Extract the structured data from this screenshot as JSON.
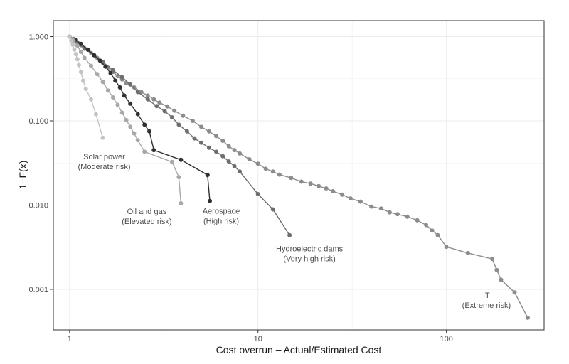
{
  "chart_data": {
    "type": "line",
    "xlabel": "Cost overrun – Actual/Estimated Cost",
    "ylabel": "1−F(x)",
    "x_scale": "log",
    "y_scale": "log",
    "xlim": [
      0.82,
      330
    ],
    "ylim": [
      0.00033,
      1.55
    ],
    "grid": true,
    "x_ticks": [
      {
        "value": 1,
        "label": "1"
      },
      {
        "value": 10,
        "label": "10"
      },
      {
        "value": 100,
        "label": "100"
      }
    ],
    "y_ticks": [
      {
        "value": 1,
        "label": "1.000"
      },
      {
        "value": 0.1,
        "label": "0.100"
      },
      {
        "value": 0.01,
        "label": "0.010"
      },
      {
        "value": 0.001,
        "label": "0.001"
      }
    ],
    "series": [
      {
        "id": "it",
        "color": "#8c8c8c",
        "points": [
          [
            1,
            1
          ],
          [
            1.05,
            0.94
          ],
          [
            1.1,
            0.86
          ],
          [
            1.15,
            0.79
          ],
          [
            1.2,
            0.73
          ],
          [
            1.3,
            0.64
          ],
          [
            1.4,
            0.56
          ],
          [
            1.5,
            0.49
          ],
          [
            1.6,
            0.43
          ],
          [
            1.7,
            0.38
          ],
          [
            1.8,
            0.34
          ],
          [
            1.9,
            0.31
          ],
          [
            2.0,
            0.28
          ],
          [
            2.2,
            0.25
          ],
          [
            2.4,
            0.22
          ],
          [
            2.6,
            0.2
          ],
          [
            2.8,
            0.18
          ],
          [
            3.0,
            0.165
          ],
          [
            3.3,
            0.148
          ],
          [
            3.6,
            0.132
          ],
          [
            4.0,
            0.115
          ],
          [
            4.5,
            0.1
          ],
          [
            5.0,
            0.085
          ],
          [
            5.5,
            0.075
          ],
          [
            6.0,
            0.066
          ],
          [
            6.5,
            0.058
          ],
          [
            7,
            0.05
          ],
          [
            7.5,
            0.045
          ],
          [
            8,
            0.041
          ],
          [
            9,
            0.035
          ],
          [
            10,
            0.031
          ],
          [
            11,
            0.027
          ],
          [
            12,
            0.025
          ],
          [
            13,
            0.023
          ],
          [
            15,
            0.021
          ],
          [
            17,
            0.019
          ],
          [
            19,
            0.018
          ],
          [
            21,
            0.0168
          ],
          [
            23,
            0.0158
          ],
          [
            25,
            0.0146
          ],
          [
            28,
            0.0133
          ],
          [
            31,
            0.012
          ],
          [
            35,
            0.011
          ],
          [
            40,
            0.0096
          ],
          [
            45,
            0.0091
          ],
          [
            50,
            0.0082
          ],
          [
            55,
            0.0078
          ],
          [
            62,
            0.0073
          ],
          [
            70,
            0.0066
          ],
          [
            78,
            0.0058
          ],
          [
            84,
            0.005
          ],
          [
            90,
            0.0044
          ],
          [
            100,
            0.0032
          ],
          [
            130,
            0.0027
          ],
          [
            175,
            0.0023
          ],
          [
            185,
            0.0017
          ],
          [
            195,
            0.0013
          ],
          [
            230,
            0.00092
          ],
          [
            270,
            0.00046
          ]
        ]
      },
      {
        "id": "hydro",
        "color": "#6e6e6e",
        "points": [
          [
            1,
            1
          ],
          [
            1.1,
            0.84
          ],
          [
            1.2,
            0.72
          ],
          [
            1.35,
            0.6
          ],
          [
            1.5,
            0.5
          ],
          [
            1.7,
            0.4
          ],
          [
            1.9,
            0.33
          ],
          [
            2.1,
            0.27
          ],
          [
            2.3,
            0.22
          ],
          [
            2.6,
            0.18
          ],
          [
            2.9,
            0.15
          ],
          [
            3.2,
            0.13
          ],
          [
            3.5,
            0.11
          ],
          [
            3.8,
            0.09
          ],
          [
            4.2,
            0.075
          ],
          [
            4.6,
            0.062
          ],
          [
            5.0,
            0.055
          ],
          [
            5.5,
            0.048
          ],
          [
            6.0,
            0.043
          ],
          [
            6.5,
            0.038
          ],
          [
            7.0,
            0.033
          ],
          [
            7.5,
            0.029
          ],
          [
            8.0,
            0.025
          ],
          [
            10,
            0.0135
          ],
          [
            12,
            0.0089
          ],
          [
            14.7,
            0.0044
          ]
        ]
      },
      {
        "id": "aerospace",
        "color": "#303030",
        "points": [
          [
            1,
            1
          ],
          [
            1.07,
            0.92
          ],
          [
            1.15,
            0.82
          ],
          [
            1.25,
            0.7
          ],
          [
            1.35,
            0.6
          ],
          [
            1.45,
            0.52
          ],
          [
            1.55,
            0.44
          ],
          [
            1.65,
            0.37
          ],
          [
            1.75,
            0.3
          ],
          [
            1.85,
            0.25
          ],
          [
            1.95,
            0.2
          ],
          [
            2.1,
            0.16
          ],
          [
            2.3,
            0.12
          ],
          [
            2.5,
            0.09
          ],
          [
            2.65,
            0.075
          ],
          [
            2.8,
            0.045
          ],
          [
            3.9,
            0.0345
          ],
          [
            5.4,
            0.0228
          ],
          [
            5.55,
            0.0112
          ]
        ]
      },
      {
        "id": "oilgas",
        "color": "#a8a8a8",
        "points": [
          [
            1,
            1
          ],
          [
            1.05,
            0.9
          ],
          [
            1.1,
            0.78
          ],
          [
            1.15,
            0.66
          ],
          [
            1.2,
            0.56
          ],
          [
            1.3,
            0.45
          ],
          [
            1.4,
            0.36
          ],
          [
            1.5,
            0.29
          ],
          [
            1.6,
            0.23
          ],
          [
            1.7,
            0.19
          ],
          [
            1.8,
            0.155
          ],
          [
            1.9,
            0.125
          ],
          [
            2.0,
            0.102
          ],
          [
            2.1,
            0.085
          ],
          [
            2.2,
            0.071
          ],
          [
            2.3,
            0.059
          ],
          [
            2.5,
            0.043
          ],
          [
            3.5,
            0.0325
          ],
          [
            3.8,
            0.0215
          ],
          [
            3.9,
            0.0105
          ]
        ]
      },
      {
        "id": "solar",
        "color": "#c4c4c4",
        "points": [
          [
            1,
            1
          ],
          [
            1.02,
            0.9
          ],
          [
            1.04,
            0.8
          ],
          [
            1.06,
            0.7
          ],
          [
            1.08,
            0.62
          ],
          [
            1.1,
            0.54
          ],
          [
            1.12,
            0.46
          ],
          [
            1.15,
            0.38
          ],
          [
            1.18,
            0.3
          ],
          [
            1.22,
            0.24
          ],
          [
            1.3,
            0.18
          ],
          [
            1.38,
            0.12
          ],
          [
            1.5,
            0.063
          ]
        ]
      }
    ],
    "annotations": [
      {
        "series": "solar",
        "lines": [
          "Solar power",
          "(Moderate risk)"
        ]
      },
      {
        "series": "oilgas",
        "lines": [
          "Oil and gas",
          "(Elevated risk)"
        ]
      },
      {
        "series": "aerospace",
        "lines": [
          "Aerospace",
          "(High risk)"
        ]
      },
      {
        "series": "hydro",
        "lines": [
          "Hydroelectric dams",
          "(Very high risk)"
        ]
      },
      {
        "series": "it",
        "lines": [
          "IT",
          "(Extreme risk)"
        ]
      }
    ]
  }
}
